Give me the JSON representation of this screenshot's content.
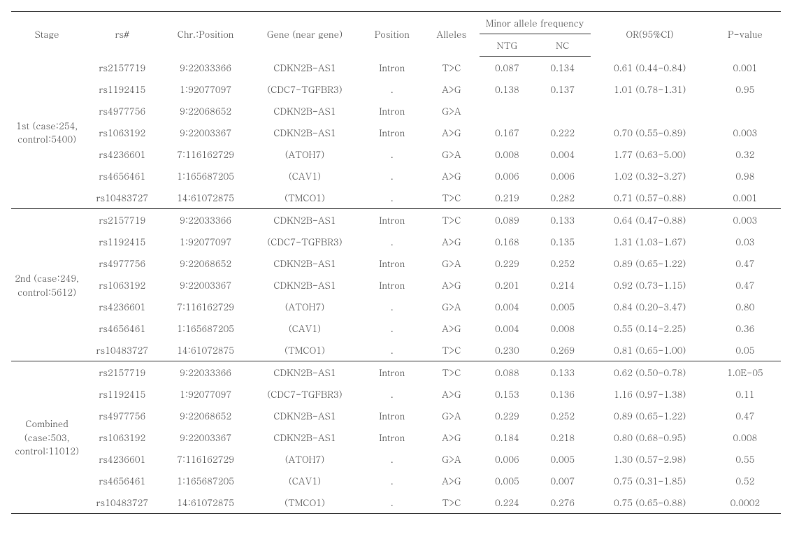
{
  "header": {
    "stage": "Stage",
    "rs": "rs#",
    "chr": "Chr.:Position",
    "gene": "Gene (near gene)",
    "position": "Position",
    "alleles": "Alleles",
    "maf": "Minor allele frequency",
    "maf_ntg": "NTG",
    "maf_nc": "NC",
    "or": "OR(95%CI)",
    "pvalue": "P-value"
  },
  "sections": [
    {
      "stage": "1st (case:254, control:5400)",
      "rows": [
        {
          "rs": "rs2157719",
          "chr": "9:22033366",
          "gene": "CDKN2B-AS1",
          "pos": "Intron",
          "all": "T>C",
          "ntg": "0.087",
          "nc": "0.134",
          "or": "0.61 (0.44-0.84)",
          "pv": "0.001",
          "pvbold": true
        },
        {
          "rs": "rs1192415",
          "chr": "1:92077097",
          "gene": "(CDC7-TGFBR3)",
          "pos": ".",
          "all": "A>G",
          "ntg": "0.138",
          "nc": "0.137",
          "or": "1.01 (0.78-1.31)",
          "pv": "0.95",
          "pvbold": false
        },
        {
          "rs": "rs4977756",
          "chr": "9:22068652",
          "gene": "CDKN2B-AS1",
          "pos": "Intron",
          "all": "G>A",
          "ntg": "",
          "nc": "",
          "or": "",
          "pv": "",
          "pvbold": false
        },
        {
          "rs": "rs1063192",
          "chr": "9:22003367",
          "gene": "CDKN2B-AS1",
          "pos": "Intron",
          "all": "A>G",
          "ntg": "0.167",
          "nc": "0.222",
          "or": "0.70 (0.55-0.89)",
          "pv": "0.003",
          "pvbold": true
        },
        {
          "rs": "rs4236601",
          "chr": "7:116162729",
          "gene": "(ATOH7)",
          "pos": ".",
          "all": "G>A",
          "ntg": "0.008",
          "nc": "0.004",
          "or": "1.77 (0.63-5.00)",
          "pv": "0.32",
          "pvbold": false
        },
        {
          "rs": "rs4656461",
          "chr": "1:165687205",
          "gene": "(CAV1)",
          "pos": ".",
          "all": "A>G",
          "ntg": "0.006",
          "nc": "0.006",
          "or": "1.02 (0.32-3.27)",
          "pv": "0.98",
          "pvbold": false
        },
        {
          "rs": "rs10483727",
          "chr": "14:61072875",
          "gene": "(TMCO1)",
          "pos": ".",
          "all": "T>C",
          "ntg": "0.219",
          "nc": "0.282",
          "or": "0.71 (0.57-0.88)",
          "pv": "0.001",
          "pvbold": true
        }
      ]
    },
    {
      "stage": "2nd (case:249, control:5612)",
      "rows": [
        {
          "rs": "rs2157719",
          "chr": "9:22033366",
          "gene": "CDKN2B-AS1",
          "pos": "Intron",
          "all": "T>C",
          "ntg": "0.089",
          "nc": "0.133",
          "or": "0.64 (0.47-0.88)",
          "pv": "0.003",
          "pvbold": true
        },
        {
          "rs": "rs1192415",
          "chr": "1:92077097",
          "gene": "(CDC7-TGFBR3)",
          "pos": ".",
          "all": "A>G",
          "ntg": "0.168",
          "nc": "0.135",
          "or": "1.31 (1.03-1.67)",
          "pv": "0.03",
          "pvbold": false
        },
        {
          "rs": "rs4977756",
          "chr": "9:22068652",
          "gene": "CDKN2B-AS1",
          "pos": "Intron",
          "all": "G>A",
          "ntg": "0.229",
          "nc": "0.252",
          "or": "0.89 (0.65-1.22)",
          "pv": "0.47",
          "pvbold": false
        },
        {
          "rs": "rs1063192",
          "chr": "9:22003367",
          "gene": "CDKN2B-AS1",
          "pos": "Intron",
          "all": "A>G",
          "ntg": "0.201",
          "nc": "0.214",
          "or": "0.92 (0.73-1.15)",
          "pv": "0.47",
          "pvbold": false
        },
        {
          "rs": "rs4236601",
          "chr": "7:116162729",
          "gene": "(ATOH7)",
          "pos": ".",
          "all": "G>A",
          "ntg": "0.004",
          "nc": "0.005",
          "or": "0.84 (0.20-3.47)",
          "pv": "0.80",
          "pvbold": false
        },
        {
          "rs": "rs4656461",
          "chr": "1:165687205",
          "gene": "(CAV1)",
          "pos": ".",
          "all": "A>G",
          "ntg": "0.004",
          "nc": "0.008",
          "or": "0.55 (0.14-2.25)",
          "pv": "0.36",
          "pvbold": false
        },
        {
          "rs": "rs10483727",
          "chr": "14:61072875",
          "gene": "(TMCO1)",
          "pos": ".",
          "all": "T>C",
          "ntg": "0.230",
          "nc": "0.269",
          "or": "0.81 (0.65-1.00)",
          "pv": "0.05",
          "pvbold": true
        }
      ]
    },
    {
      "stage": "Combined (case:503, control:11012)",
      "rows": [
        {
          "rs": "rs2157719",
          "chr": "9:22033366",
          "gene": "CDKN2B-AS1",
          "pos": "Intron",
          "all": "T>C",
          "ntg": "0.088",
          "nc": "0.133",
          "or": "0.62 (0.50-0.78)",
          "pv": "1.0E-05",
          "pvbold": true
        },
        {
          "rs": "rs1192415",
          "chr": "1:92077097",
          "gene": "(CDC7-TGFBR3)",
          "pos": ".",
          "all": "A>G",
          "ntg": "0.153",
          "nc": "0.136",
          "or": "1.16 (0.97-1.38)",
          "pv": "0.11",
          "pvbold": false
        },
        {
          "rs": "rs4977756",
          "chr": "9:22068652",
          "gene": "CDKN2B-AS1",
          "pos": "Intron",
          "all": "G>A",
          "ntg": "0.229",
          "nc": "0.252",
          "or": "0.89 (0.65-1.22)",
          "pv": "0.47",
          "pvbold": false
        },
        {
          "rs": "rs1063192",
          "chr": "9:22003367",
          "gene": "CDKN2B-AS1",
          "pos": "Intron",
          "all": "A>G",
          "ntg": "0.184",
          "nc": "0.218",
          "or": "0.80 (0.68-0.95)",
          "pv": "0.008",
          "pvbold": true
        },
        {
          "rs": "rs4236601",
          "chr": "7:116162729",
          "gene": "(ATOH7)",
          "pos": ".",
          "all": "G>A",
          "ntg": "0.006",
          "nc": "0.005",
          "or": "1.30 (0.57-2.98)",
          "pv": "0.55",
          "pvbold": false
        },
        {
          "rs": "rs4656461",
          "chr": "1:165687205",
          "gene": "(CAV1)",
          "pos": ".",
          "all": "A>G",
          "ntg": "0.005",
          "nc": "0.007",
          "or": "0.75 (0.31-1.85)",
          "pv": "0.52",
          "pvbold": false
        },
        {
          "rs": "rs10483727",
          "chr": "14:61072875",
          "gene": "(TMCO1)",
          "pos": ".",
          "all": "T>C",
          "ntg": "0.224",
          "nc": "0.276",
          "or": "0.75 (0.65-0.88)",
          "pv": "0.0002",
          "pvbold": true
        }
      ]
    }
  ]
}
